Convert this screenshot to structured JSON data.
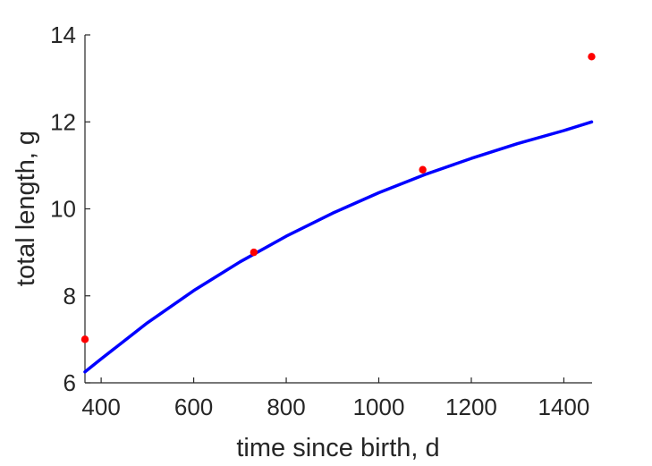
{
  "chart_data": {
    "type": "scatter",
    "title": "",
    "xlabel": "time since birth, d",
    "ylabel": "total length, g",
    "xlim": [
      365,
      1461
    ],
    "ylim": [
      6,
      14
    ],
    "xticks": [
      400,
      600,
      800,
      1000,
      1200,
      1400
    ],
    "yticks": [
      6,
      8,
      10,
      12,
      14
    ],
    "grid": false,
    "legend": "none",
    "series": [
      {
        "kind": "points",
        "color": "#ff0000",
        "points": [
          {
            "x": 365,
            "y": 7.0
          },
          {
            "x": 730,
            "y": 9.0
          },
          {
            "x": 1095,
            "y": 10.9
          },
          {
            "x": 1460,
            "y": 13.5
          }
        ]
      },
      {
        "kind": "line",
        "color": "#0000ff",
        "points": [
          {
            "x": 365,
            "y": 6.25
          },
          {
            "x": 400,
            "y": 6.55
          },
          {
            "x": 500,
            "y": 7.38
          },
          {
            "x": 600,
            "y": 8.12
          },
          {
            "x": 700,
            "y": 8.78
          },
          {
            "x": 800,
            "y": 9.37
          },
          {
            "x": 900,
            "y": 9.9
          },
          {
            "x": 1000,
            "y": 10.37
          },
          {
            "x": 1100,
            "y": 10.79
          },
          {
            "x": 1200,
            "y": 11.16
          },
          {
            "x": 1300,
            "y": 11.5
          },
          {
            "x": 1400,
            "y": 11.8
          },
          {
            "x": 1460,
            "y": 12.0
          }
        ]
      }
    ]
  }
}
